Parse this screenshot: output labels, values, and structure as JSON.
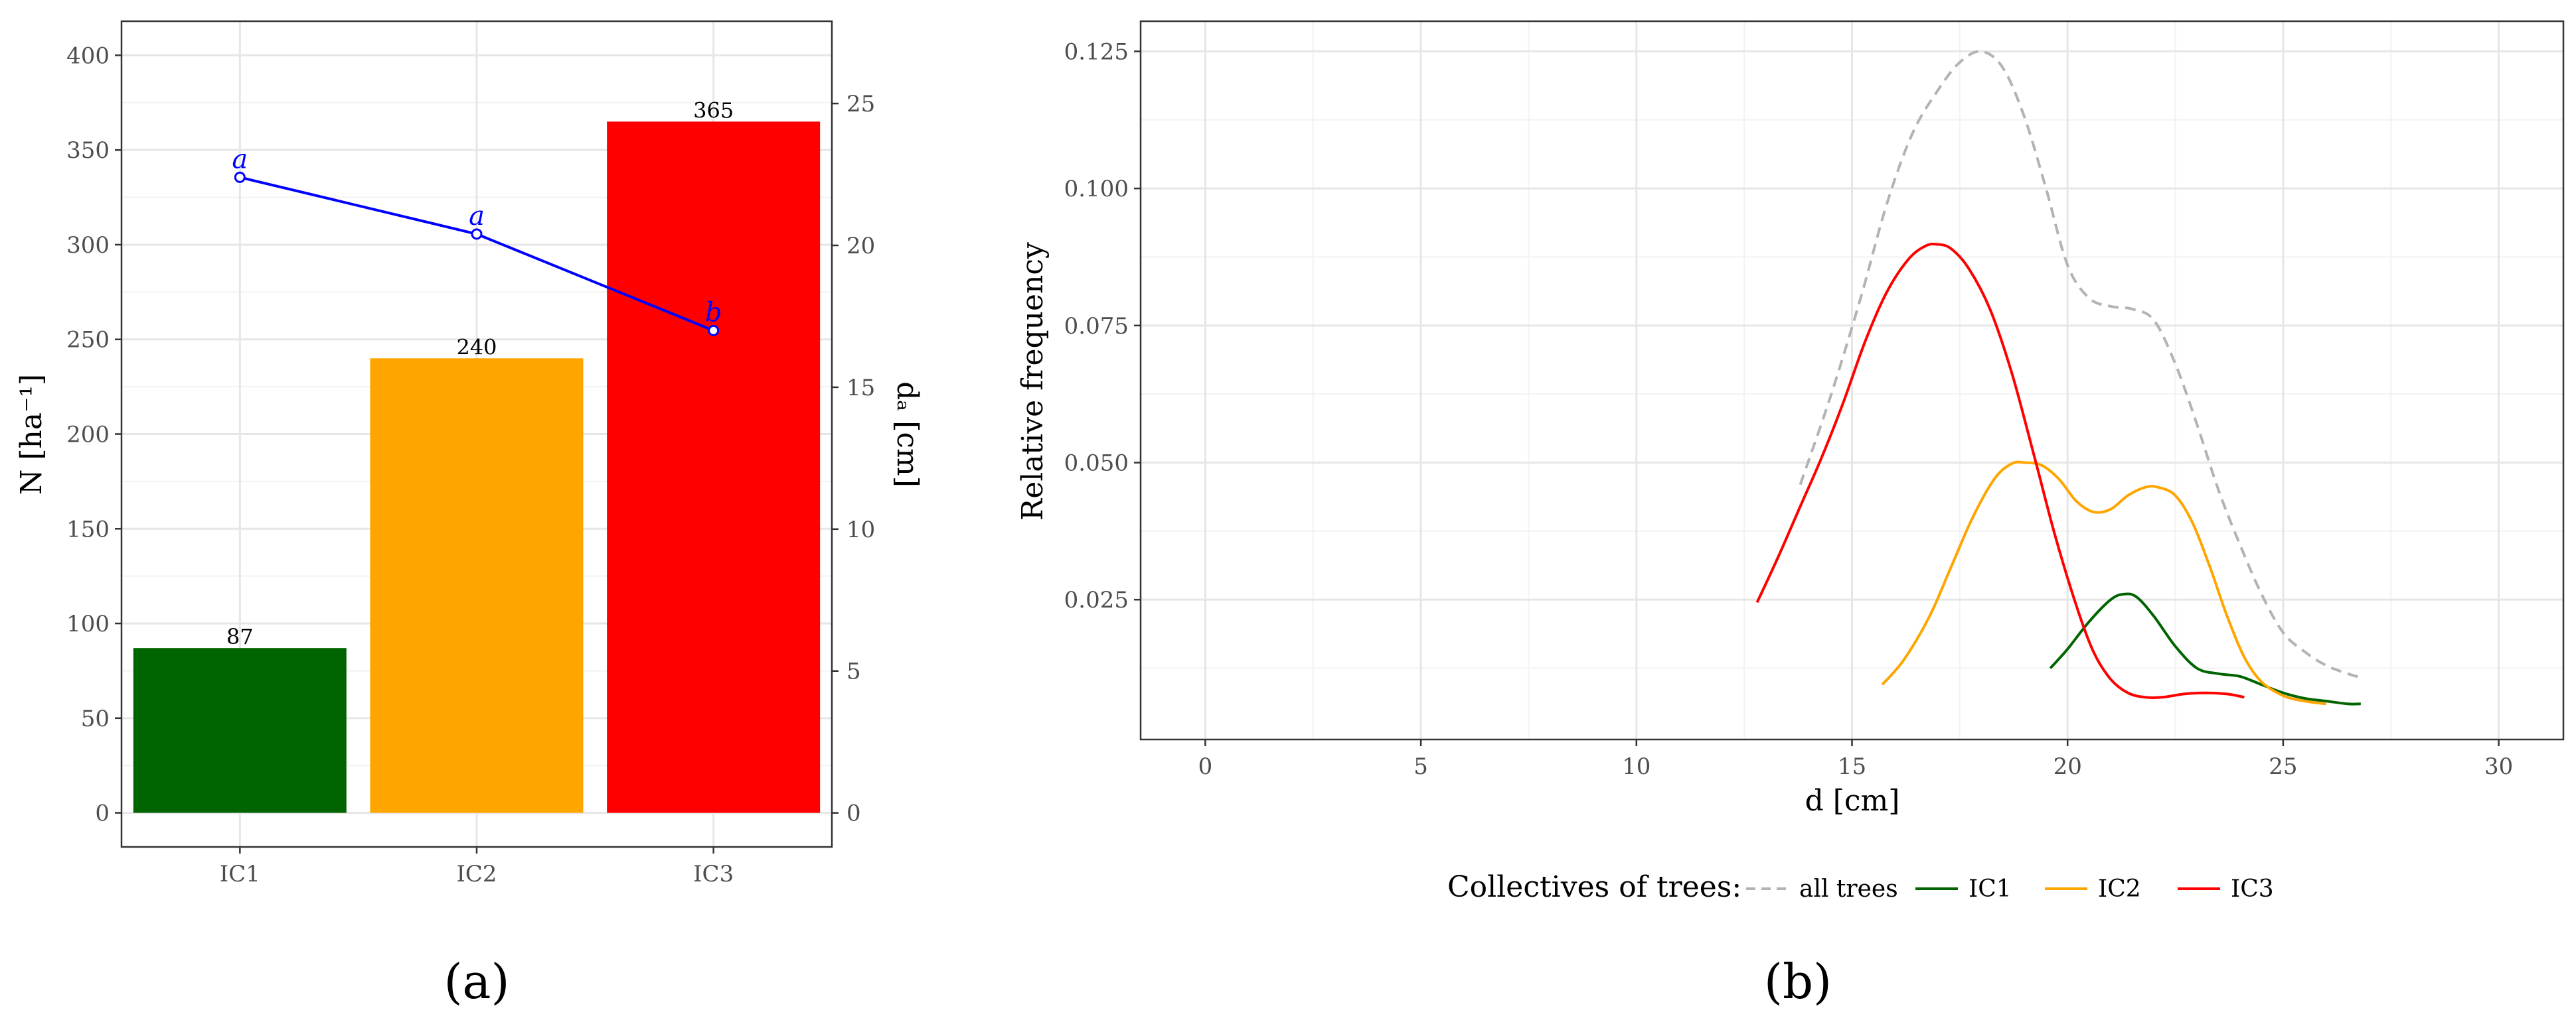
{
  "colors": {
    "IC1": "#006400",
    "IC2": "#FFA500",
    "IC3": "#FF0000",
    "all_trees": "#b3b3b3",
    "line_a": "#0000FF",
    "grid_major": "#e6e6e6",
    "grid_minor": "#f2f2f2",
    "axis_text": "#4d4d4d"
  },
  "panel_labels": {
    "a": "(a)",
    "b": "(b)"
  },
  "chart_data": [
    {
      "type": "bar",
      "panel": "a",
      "categories": [
        "IC1",
        "IC2",
        "IC3"
      ],
      "values": [
        87,
        240,
        365
      ],
      "bar_labels": [
        "87",
        "240",
        "365"
      ],
      "ylabel": "N [ha⁻¹]",
      "ylim": [
        -18,
        418
      ],
      "yticks": [
        0,
        50,
        100,
        150,
        200,
        250,
        300,
        350,
        400
      ],
      "secondary_axis": {
        "label": "dₐ [cm]",
        "ylim": [
          -1.2,
          27.9
        ],
        "yticks": [
          0,
          5,
          10,
          15,
          20,
          25
        ]
      },
      "line_series": {
        "axis": "secondary",
        "values": [
          22.4,
          20.4,
          17.0
        ],
        "letters": [
          "a",
          "a",
          "b"
        ]
      },
      "grid": true
    },
    {
      "type": "line",
      "panel": "b",
      "xlabel": "d [cm]",
      "ylabel": "Relative frequency",
      "xlim": [
        -1.5,
        31.5
      ],
      "ylim": [
        -0.0005,
        0.1305
      ],
      "xticks": [
        0,
        5,
        10,
        15,
        20,
        25,
        30
      ],
      "yticks": [
        0.025,
        0.05,
        0.075,
        0.1,
        0.125
      ],
      "ytick_labels": [
        "0.025",
        "0.050",
        "0.075",
        "0.100",
        "0.125"
      ],
      "grid": true,
      "legend": {
        "title": "Collectives of trees:",
        "position": "bottom",
        "entries": [
          "all trees",
          "IC1",
          "IC2",
          "IC3"
        ]
      },
      "series": [
        {
          "name": "all trees",
          "dashed": true,
          "x": [
            13.8,
            14.5,
            15.2,
            15.8,
            16.4,
            17.0,
            17.5,
            18.0,
            18.5,
            19.0,
            19.5,
            20.0,
            20.5,
            21.0,
            21.5,
            22.0,
            22.5,
            23.0,
            23.5,
            24.0,
            24.5,
            25.0,
            25.5,
            26.0,
            26.5,
            26.8
          ],
          "y": [
            0.046,
            0.062,
            0.08,
            0.097,
            0.11,
            0.118,
            0.123,
            0.125,
            0.122,
            0.113,
            0.1,
            0.086,
            0.08,
            0.0785,
            0.078,
            0.076,
            0.068,
            0.057,
            0.045,
            0.035,
            0.026,
            0.019,
            0.0155,
            0.013,
            0.0115,
            0.0108
          ]
        },
        {
          "name": "IC1",
          "dashed": false,
          "x": [
            19.6,
            20.0,
            20.5,
            21.0,
            21.3,
            21.6,
            22.0,
            22.5,
            23.0,
            23.5,
            24.0,
            24.5,
            25.0,
            25.5,
            26.0,
            26.5,
            26.8
          ],
          "y": [
            0.0125,
            0.016,
            0.021,
            0.025,
            0.026,
            0.0255,
            0.022,
            0.0165,
            0.0125,
            0.0115,
            0.011,
            0.0095,
            0.008,
            0.007,
            0.0065,
            0.006,
            0.006
          ]
        },
        {
          "name": "IC2",
          "dashed": false,
          "x": [
            15.7,
            16.2,
            16.8,
            17.3,
            17.8,
            18.3,
            18.7,
            19.0,
            19.4,
            19.8,
            20.2,
            20.6,
            21.0,
            21.4,
            21.8,
            22.1,
            22.5,
            22.9,
            23.3,
            23.7,
            24.1,
            24.5,
            25.0,
            25.5,
            26.0
          ],
          "y": [
            0.0095,
            0.014,
            0.022,
            0.031,
            0.04,
            0.047,
            0.0498,
            0.05,
            0.0495,
            0.047,
            0.043,
            0.041,
            0.0415,
            0.044,
            0.0455,
            0.0455,
            0.044,
            0.039,
            0.031,
            0.022,
            0.0145,
            0.01,
            0.0075,
            0.0065,
            0.006
          ]
        },
        {
          "name": "IC3",
          "dashed": false,
          "x": [
            12.8,
            13.3,
            13.8,
            14.3,
            14.8,
            15.3,
            15.8,
            16.3,
            16.7,
            17.0,
            17.3,
            17.7,
            18.2,
            18.7,
            19.2,
            19.7,
            20.2,
            20.6,
            21.0,
            21.4,
            21.8,
            22.2,
            22.7,
            23.2,
            23.7,
            24.1
          ],
          "y": [
            0.0245,
            0.033,
            0.042,
            0.051,
            0.061,
            0.072,
            0.081,
            0.087,
            0.0895,
            0.0898,
            0.089,
            0.0855,
            0.078,
            0.0665,
            0.052,
            0.037,
            0.024,
            0.0155,
            0.0105,
            0.008,
            0.0072,
            0.0072,
            0.0078,
            0.008,
            0.0078,
            0.0072
          ]
        }
      ]
    }
  ]
}
